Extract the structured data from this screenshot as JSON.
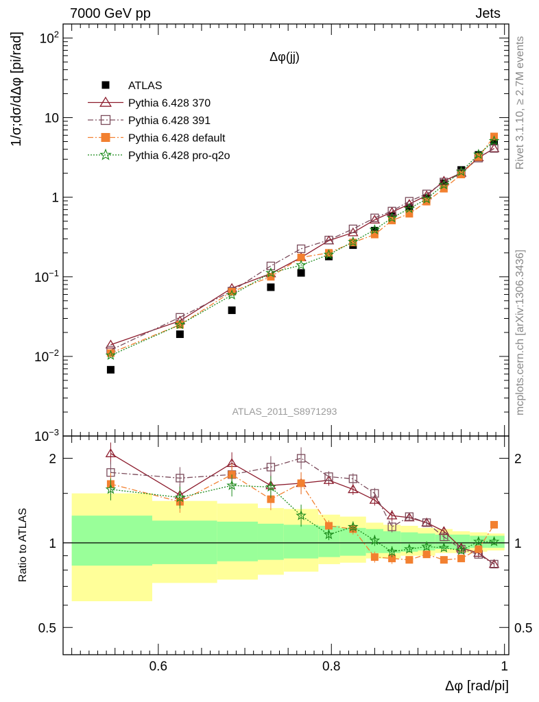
{
  "header": {
    "left": "7000 GeV pp",
    "right": "Jets"
  },
  "side_labels": {
    "top": "Rivet 3.1.10, ≥ 2.7M events",
    "bottom": "mcplots.cern.ch [arXiv:1306.3436]"
  },
  "analysis_id": "ATLAS_2011_S8971293",
  "chart_data": [
    {
      "type": "scatter",
      "title": "Δφ(jj)",
      "xlabel": "Δφ [rad/pi]",
      "ylabel": "1/σ;dσ/dΔφ [pi/rad]",
      "yscale": "log",
      "xlim": [
        0.49,
        1.005
      ],
      "ylim": [
        0.001,
        150
      ],
      "x_ticks": [
        "0.6",
        "0.8",
        "1"
      ],
      "y_ticks": [
        "10−3",
        "10−2",
        "10−1",
        "1",
        "10",
        "10²"
      ],
      "legend_position": "top-left",
      "x": [
        0.545,
        0.625,
        0.685,
        0.73,
        0.765,
        0.797,
        0.825,
        0.85,
        0.87,
        0.89,
        0.91,
        0.93,
        0.95,
        0.97,
        0.988
      ],
      "series": [
        {
          "name": "ATLAS",
          "color": "#000000",
          "marker": "filled-square",
          "values": [
            0.0068,
            0.019,
            0.038,
            0.074,
            0.112,
            0.18,
            0.25,
            0.38,
            0.58,
            0.74,
            0.97,
            1.5,
            2.2,
            3.4,
            5.0
          ]
        },
        {
          "name": "Pythia 6.428 370",
          "color": "#8b1a2b",
          "marker": "open-triangle",
          "values": [
            0.014,
            0.028,
            0.072,
            0.11,
            0.175,
            0.285,
            0.36,
            0.52,
            0.65,
            0.82,
            1.05,
            1.6,
            2.02,
            3.15,
            4.1
          ]
        },
        {
          "name": "Pythia 6.428 391",
          "color": "#7a4a5a",
          "marker": "open-square",
          "values": [
            0.012,
            0.031,
            0.066,
            0.137,
            0.225,
            0.29,
            0.4,
            0.55,
            0.67,
            0.89,
            1.1,
            1.55,
            2.0,
            3.1,
            4.1
          ]
        },
        {
          "name": "Pythia 6.428 default",
          "color": "#f28030",
          "marker": "filled-square",
          "values": [
            0.011,
            0.025,
            0.065,
            0.1,
            0.175,
            0.2,
            0.27,
            0.34,
            0.51,
            0.62,
            0.88,
            1.28,
            1.93,
            3.2,
            5.8
          ]
        },
        {
          "name": "Pythia 6.428 pro-q2o",
          "color": "#1a8a1a",
          "marker": "star",
          "values": [
            0.0103,
            0.025,
            0.059,
            0.112,
            0.14,
            0.19,
            0.275,
            0.39,
            0.55,
            0.72,
            0.95,
            1.43,
            2.1,
            3.45,
            5.1
          ]
        }
      ]
    },
    {
      "type": "scatter",
      "ylabel": "Ratio to ATLAS",
      "xlabel": "Δφ [rad/pi]",
      "yscale": "log",
      "xlim": [
        0.49,
        1.005
      ],
      "ylim": [
        0.4,
        2.4
      ],
      "y_ticks": [
        "0.5",
        "1",
        "2"
      ],
      "reference_line": 1,
      "bands": {
        "edges": [
          0.5,
          0.593,
          0.668,
          0.715,
          0.745,
          0.785,
          0.81,
          0.84,
          0.86,
          0.88,
          0.9,
          0.92,
          0.94,
          0.96,
          0.98,
          1.0
        ],
        "inner_low": [
          0.83,
          0.84,
          0.86,
          0.87,
          0.88,
          0.89,
          0.9,
          0.92,
          0.92,
          0.93,
          0.94,
          0.95,
          0.95,
          0.96,
          0.96
        ],
        "inner_high": [
          1.25,
          1.2,
          1.19,
          1.17,
          1.16,
          1.15,
          1.13,
          1.12,
          1.1,
          1.09,
          1.08,
          1.07,
          1.07,
          1.06,
          1.06
        ],
        "outer_low": [
          0.62,
          0.72,
          0.74,
          0.77,
          0.79,
          0.84,
          0.85,
          0.88,
          0.88,
          0.9,
          0.9,
          0.92,
          0.92,
          0.93,
          0.94
        ],
        "outer_high": [
          1.5,
          1.41,
          1.38,
          1.33,
          1.32,
          1.26,
          1.24,
          1.18,
          1.16,
          1.15,
          1.13,
          1.12,
          1.1,
          1.09,
          1.08
        ]
      },
      "series": [
        {
          "name": "Pythia 6.428 370",
          "color": "#8b1a2b",
          "marker": "open-triangle",
          "values": [
            2.08,
            1.48,
            1.92,
            1.6,
            1.63,
            1.67,
            1.55,
            1.42,
            1.25,
            1.23,
            1.18,
            1.1,
            0.96,
            0.92,
            0.84
          ]
        },
        {
          "name": "Pythia 6.428 391",
          "color": "#7a4a5a",
          "marker": "open-square",
          "values": [
            1.78,
            1.7,
            1.75,
            1.86,
            2.0,
            1.72,
            1.69,
            1.5,
            1.14,
            1.24,
            1.18,
            1.05,
            0.95,
            0.91,
            0.84
          ]
        },
        {
          "name": "Pythia 6.428 default",
          "color": "#f28030",
          "marker": "filled-square",
          "values": [
            1.62,
            1.4,
            1.75,
            1.43,
            1.63,
            1.15,
            1.12,
            0.89,
            0.88,
            0.87,
            0.91,
            0.87,
            0.88,
            0.95,
            1.16
          ]
        },
        {
          "name": "Pythia 6.428 pro-q2o",
          "color": "#1a8a1a",
          "marker": "star",
          "values": [
            1.55,
            1.45,
            1.6,
            1.58,
            1.25,
            1.07,
            1.14,
            1.02,
            0.93,
            0.95,
            0.97,
            0.96,
            0.94,
            1.01,
            1.01
          ]
        }
      ]
    }
  ]
}
